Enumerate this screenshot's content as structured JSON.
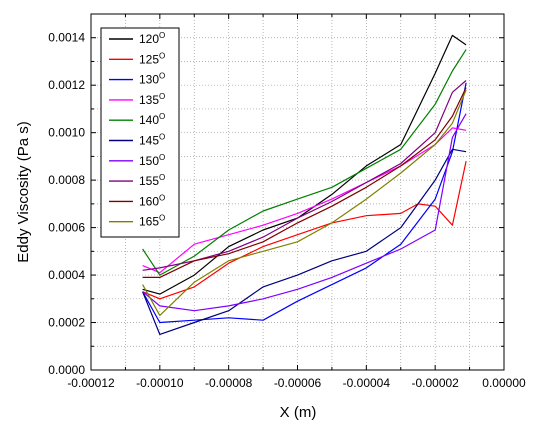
{
  "chart_data": {
    "type": "line",
    "xlabel": "X (m)",
    "ylabel": "Eddy Viscosity (Pa s)",
    "xlim": [
      -0.00012,
      0.0
    ],
    "ylim": [
      0.0,
      0.0015
    ],
    "x_ticks": [
      -0.00012,
      -0.0001,
      -8e-05,
      -6e-05,
      -4e-05,
      -2e-05,
      0.0
    ],
    "x_tick_labels": [
      "-0.00012",
      "-0.00010",
      "-0.00008",
      "-0.00006",
      "-0.00004",
      "-0.00002",
      "0.00000"
    ],
    "y_ticks": [
      0.0,
      0.0002,
      0.0004,
      0.0006,
      0.0008,
      0.001,
      0.0012,
      0.0014
    ],
    "y_tick_labels": [
      "0.0000",
      "0.0002",
      "0.0004",
      "0.0006",
      "0.0008",
      "0.0010",
      "0.0012",
      "0.0014"
    ],
    "grid": true,
    "legend_position": "top-left",
    "series": [
      {
        "name": "120",
        "sup": "O",
        "color": "#000000",
        "x": [
          -0.000105,
          -0.0001,
          -9e-05,
          -8e-05,
          -7e-05,
          -6e-05,
          -5e-05,
          -4e-05,
          -3e-05,
          -2e-05,
          -1.5e-05,
          -1.1e-05
        ],
        "y": [
          0.00034,
          0.00032,
          0.0004,
          0.00052,
          0.00059,
          0.00064,
          0.00074,
          0.00086,
          0.00095,
          0.00125,
          0.00141,
          0.00137
        ]
      },
      {
        "name": "125",
        "sup": "O",
        "color": "#ff0000",
        "x": [
          -0.000105,
          -0.0001,
          -9e-05,
          -8e-05,
          -7e-05,
          -6e-05,
          -5e-05,
          -4e-05,
          -3e-05,
          -2.5e-05,
          -2e-05,
          -1.5e-05,
          -1.1e-05
        ],
        "y": [
          0.00033,
          0.0003,
          0.00035,
          0.00045,
          0.00052,
          0.00057,
          0.00062,
          0.00065,
          0.00066,
          0.0007,
          0.00069,
          0.00061,
          0.00088
        ]
      },
      {
        "name": "130",
        "sup": "O",
        "color": "#0000ff",
        "x": [
          -0.000105,
          -0.0001,
          -9e-05,
          -8e-05,
          -7e-05,
          -6e-05,
          -5e-05,
          -4e-05,
          -3e-05,
          -2e-05,
          -1.5e-05,
          -1.1e-05
        ],
        "y": [
          0.00033,
          0.0002,
          0.00021,
          0.00022,
          0.00021,
          0.00029,
          0.00036,
          0.00043,
          0.00053,
          0.00072,
          0.00092,
          0.00121
        ]
      },
      {
        "name": "135",
        "sup": "O",
        "color": "#ff00ff",
        "x": [
          -0.000105,
          -0.0001,
          -9e-05,
          -8e-05,
          -7e-05,
          -6e-05,
          -5e-05,
          -4e-05,
          -3e-05,
          -2e-05,
          -1.5e-05,
          -1.1e-05
        ],
        "y": [
          0.00044,
          0.00041,
          0.00053,
          0.00057,
          0.00061,
          0.00066,
          0.00072,
          0.00079,
          0.00086,
          0.00095,
          0.00102,
          0.00101
        ]
      },
      {
        "name": "140",
        "sup": "O",
        "color": "#008000",
        "x": [
          -0.000105,
          -0.0001,
          -9e-05,
          -8e-05,
          -7e-05,
          -6e-05,
          -5e-05,
          -4e-05,
          -3e-05,
          -2e-05,
          -1.5e-05,
          -1.1e-05
        ],
        "y": [
          0.00051,
          0.0004,
          0.00048,
          0.00059,
          0.00067,
          0.00072,
          0.00077,
          0.00085,
          0.00093,
          0.00112,
          0.00126,
          0.00135
        ]
      },
      {
        "name": "145",
        "sup": "O",
        "color": "#000080",
        "x": [
          -0.000105,
          -0.0001,
          -9e-05,
          -8e-05,
          -7e-05,
          -6e-05,
          -5e-05,
          -4e-05,
          -3e-05,
          -2e-05,
          -1.5e-05,
          -1.1e-05
        ],
        "y": [
          0.00033,
          0.00015,
          0.0002,
          0.00025,
          0.00035,
          0.0004,
          0.00046,
          0.0005,
          0.0006,
          0.0008,
          0.00093,
          0.00092
        ]
      },
      {
        "name": "150",
        "sup": "O",
        "color": "#8000ff",
        "x": [
          -0.000105,
          -0.0001,
          -9e-05,
          -8e-05,
          -7e-05,
          -6e-05,
          -5e-05,
          -4e-05,
          -3e-05,
          -2e-05,
          -1.5e-05,
          -1.1e-05
        ],
        "y": [
          0.00033,
          0.00027,
          0.00025,
          0.00027,
          0.0003,
          0.00034,
          0.00039,
          0.00045,
          0.00051,
          0.00059,
          0.00098,
          0.00108
        ]
      },
      {
        "name": "155",
        "sup": "O",
        "color": "#800080",
        "x": [
          -0.000105,
          -0.0001,
          -9e-05,
          -8e-05,
          -7e-05,
          -6e-05,
          -5e-05,
          -4e-05,
          -3e-05,
          -2e-05,
          -1.5e-05,
          -1.1e-05
        ],
        "y": [
          0.00042,
          0.00043,
          0.00046,
          0.0005,
          0.00056,
          0.00064,
          0.00071,
          0.00079,
          0.00087,
          0.001,
          0.00117,
          0.00122
        ]
      },
      {
        "name": "160",
        "sup": "O",
        "color": "#800000",
        "x": [
          -0.000105,
          -0.0001,
          -9e-05,
          -8e-05,
          -7e-05,
          -6e-05,
          -5e-05,
          -4e-05,
          -3e-05,
          -2e-05,
          -1.5e-05,
          -1.1e-05
        ],
        "y": [
          0.00039,
          0.00039,
          0.00046,
          0.00049,
          0.00054,
          0.00062,
          0.00069,
          0.00077,
          0.00086,
          0.00097,
          0.00107,
          0.00119
        ]
      },
      {
        "name": "165",
        "sup": "O",
        "color": "#808000",
        "x": [
          -0.000105,
          -0.0001,
          -9e-05,
          -8e-05,
          -7e-05,
          -6e-05,
          -5e-05,
          -4e-05,
          -3e-05,
          -2e-05,
          -1.5e-05,
          -1.1e-05
        ],
        "y": [
          0.00036,
          0.00023,
          0.00037,
          0.00046,
          0.0005,
          0.00054,
          0.00062,
          0.00072,
          0.00083,
          0.00095,
          0.00104,
          0.00118
        ]
      }
    ]
  }
}
